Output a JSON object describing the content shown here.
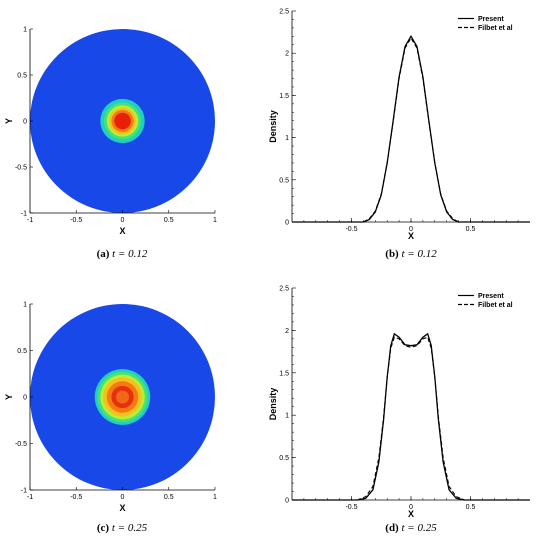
{
  "chart_data": [
    {
      "type": "heatmap",
      "panel": "a",
      "caption_tag": "(a)",
      "caption_math": "t = 0.12",
      "xlabel": "X",
      "ylabel": "Y",
      "xlim": [
        -1,
        1
      ],
      "ylim": [
        -1,
        1
      ],
      "x_ticks": [
        "-1",
        "-0.5",
        "0",
        "0.5",
        "1"
      ],
      "y_ticks": [
        "-1",
        "-0.5",
        "0",
        "0.5",
        "1"
      ],
      "domain": "unit disk",
      "pulse_center": [
        0,
        0
      ],
      "contour_levels": [
        {
          "radius": 0.24,
          "color": "#1fd0c0"
        },
        {
          "radius": 0.2,
          "color": "#49e07a"
        },
        {
          "radius": 0.17,
          "color": "#b8f030"
        },
        {
          "radius": 0.145,
          "color": "#f4c020"
        },
        {
          "radius": 0.12,
          "color": "#f57a10"
        },
        {
          "radius": 0.09,
          "color": "#e82008"
        }
      ],
      "background_color": "#1848e8"
    },
    {
      "type": "line",
      "panel": "b",
      "caption_tag": "(b)",
      "caption_math": "t = 0.12",
      "xlabel": "X",
      "ylabel": "Density",
      "xlim": [
        -1,
        1
      ],
      "ylim": [
        0,
        2.5
      ],
      "x_ticks": [
        "-0.5",
        "0",
        "0.5"
      ],
      "y_ticks": [
        "0",
        "0.5",
        "1",
        "1.5",
        "2",
        "2.5"
      ],
      "legend_position": "top-right",
      "series": [
        {
          "name": "Present",
          "dash": "solid",
          "x": [
            -1,
            -0.4,
            -0.35,
            -0.3,
            -0.25,
            -0.2,
            -0.15,
            -0.1,
            -0.05,
            0,
            0.05,
            0.1,
            0.15,
            0.2,
            0.25,
            0.3,
            0.35,
            0.4,
            1
          ],
          "y": [
            0,
            0,
            0.03,
            0.12,
            0.32,
            0.7,
            1.2,
            1.72,
            2.08,
            2.2,
            2.08,
            1.72,
            1.2,
            0.7,
            0.32,
            0.12,
            0.03,
            0,
            0
          ]
        },
        {
          "name": "Filbet et al",
          "dash": "dashed",
          "x": [
            -1,
            -0.4,
            -0.35,
            -0.3,
            -0.25,
            -0.2,
            -0.15,
            -0.1,
            -0.05,
            0,
            0.05,
            0.1,
            0.15,
            0.2,
            0.25,
            0.3,
            0.35,
            0.4,
            1
          ],
          "y": [
            0,
            0,
            0.04,
            0.13,
            0.33,
            0.7,
            1.19,
            1.7,
            2.06,
            2.18,
            2.06,
            1.7,
            1.19,
            0.7,
            0.33,
            0.13,
            0.04,
            0,
            0
          ]
        }
      ]
    },
    {
      "type": "heatmap",
      "panel": "c",
      "caption_tag": "(c)",
      "caption_math": "t = 0.25",
      "xlabel": "X",
      "ylabel": "Y",
      "xlim": [
        -1,
        1
      ],
      "ylim": [
        -1,
        1
      ],
      "x_ticks": [
        "-1",
        "-0.5",
        "0",
        "0.5",
        "1"
      ],
      "y_ticks": [
        "-1",
        "-0.5",
        "0",
        "0.5",
        "1"
      ],
      "domain": "unit disk",
      "pulse_center": [
        0,
        0
      ],
      "contour_levels": [
        {
          "radius": 0.3,
          "color": "#1fd0c0"
        },
        {
          "radius": 0.27,
          "color": "#49e07a"
        },
        {
          "radius": 0.24,
          "color": "#b8f030"
        },
        {
          "radius": 0.21,
          "color": "#f4c020"
        },
        {
          "radius": 0.17,
          "color": "#f57a10"
        },
        {
          "radius": 0.12,
          "color": "#e83010"
        },
        {
          "radius": 0.07,
          "color": "#f06818"
        }
      ],
      "background_color": "#1848e8"
    },
    {
      "type": "line",
      "panel": "d",
      "caption_tag": "(d)",
      "caption_math": "t = 0.25",
      "xlabel": "X",
      "ylabel": "Density",
      "xlim": [
        -1,
        1
      ],
      "ylim": [
        0,
        2.5
      ],
      "x_ticks": [
        "-0.5",
        "0",
        "0.5"
      ],
      "y_ticks": [
        "0",
        "0.5",
        "1",
        "1.5",
        "2",
        "2.5"
      ],
      "legend_position": "top-right",
      "series": [
        {
          "name": "Present",
          "dash": "solid",
          "x": [
            -1,
            -0.45,
            -0.38,
            -0.32,
            -0.27,
            -0.23,
            -0.2,
            -0.17,
            -0.14,
            -0.1,
            -0.05,
            0,
            0.05,
            0.1,
            0.14,
            0.17,
            0.2,
            0.23,
            0.27,
            0.32,
            0.38,
            0.45,
            1
          ],
          "y": [
            0,
            0,
            0.02,
            0.12,
            0.45,
            0.95,
            1.45,
            1.82,
            1.96,
            1.92,
            1.83,
            1.82,
            1.83,
            1.92,
            1.96,
            1.82,
            1.45,
            0.95,
            0.45,
            0.12,
            0.02,
            0,
            0
          ]
        },
        {
          "name": "Filbet et al",
          "dash": "dashed",
          "x": [
            -1,
            -0.45,
            -0.38,
            -0.32,
            -0.27,
            -0.23,
            -0.2,
            -0.17,
            -0.14,
            -0.1,
            -0.05,
            0,
            0.05,
            0.1,
            0.14,
            0.17,
            0.2,
            0.23,
            0.27,
            0.32,
            0.38,
            0.45,
            1
          ],
          "y": [
            0,
            0,
            0.04,
            0.16,
            0.5,
            0.98,
            1.45,
            1.79,
            1.92,
            1.9,
            1.82,
            1.8,
            1.82,
            1.9,
            1.92,
            1.79,
            1.45,
            0.98,
            0.5,
            0.16,
            0.04,
            0,
            0
          ]
        }
      ]
    }
  ]
}
